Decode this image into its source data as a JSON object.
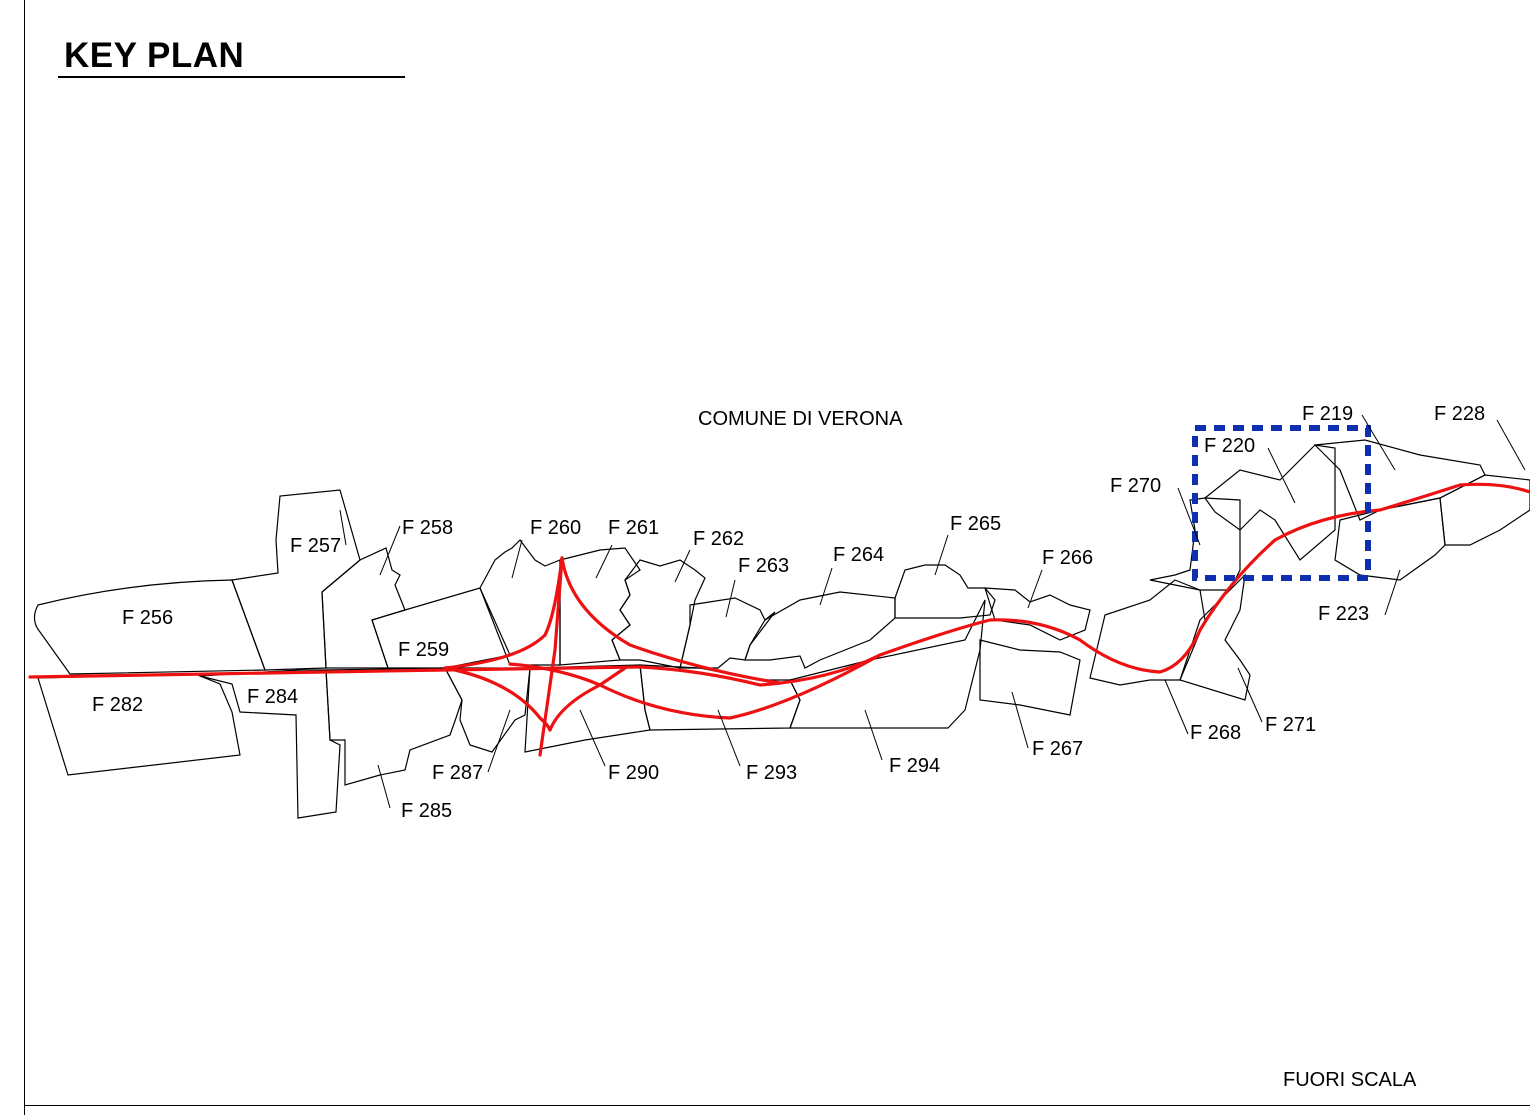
{
  "title": "KEY PLAN",
  "municipality": "COMUNE DI VERONA",
  "scale_note": "FUORI SCALA",
  "colors": {
    "route": "#ee1111",
    "highlight": "#0d2fb0",
    "parcel_outline": "#000000"
  },
  "highlighted_sheet": "F 220",
  "sheets": {
    "f256": "F 256",
    "f257": "F 257",
    "f258": "F 258",
    "f259": "F 259",
    "f260": "F 260",
    "f261": "F 261",
    "f262": "F 262",
    "f263": "F 263",
    "f264": "F 264",
    "f265": "F 265",
    "f266": "F 266",
    "f267": "F 267",
    "f268": "F 268",
    "f270": "F 270",
    "f271": "F 271",
    "f219": "F 219",
    "f220": "F 220",
    "f223": "F 223",
    "f228": "F 228",
    "f282": "F 282",
    "f284": "F 284",
    "f285": "F 285",
    "f287": "F 287",
    "f290": "F 290",
    "f293": "F 293",
    "f294": "F 294"
  }
}
